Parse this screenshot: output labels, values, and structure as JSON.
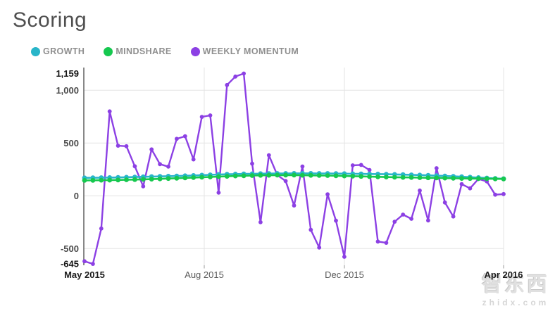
{
  "header": {
    "title": "Scoring"
  },
  "legend": {
    "items": [
      {
        "label": "GROWTH",
        "color": "#29b5c9"
      },
      {
        "label": "MINDSHARE",
        "color": "#16c84f"
      },
      {
        "label": "WEEKLY MOMENTUM",
        "color": "#8c40e4"
      }
    ]
  },
  "watermark": {
    "logo": "智东西",
    "domain": "zhidx.com"
  },
  "colors": {
    "growth": "#29b5c9",
    "mindshare": "#16c84f",
    "weekly_momentum": "#8c40e4",
    "axis_line": "#6b6b6b",
    "gridline": "#e4e4e4",
    "tick_label_regular": "#4a4a4a",
    "tick_label_extreme": "#141414",
    "x_label_regular": "#5a5a5a",
    "x_label_bold": "#1c1c1c"
  },
  "chart_data": {
    "type": "line",
    "title": "Scoring",
    "ylim": [
      -645,
      1159
    ],
    "grid": "on",
    "legend_position": "top-left",
    "x_range_labels": [
      "May 2015",
      "Apr 2016"
    ],
    "x_ticks": [
      {
        "label": "May 2015",
        "pos": 0.0,
        "bold": true
      },
      {
        "label": "Aug 2015",
        "pos": 0.2857,
        "bold": false
      },
      {
        "label": "Dec 2015",
        "pos": 0.6202,
        "bold": false
      },
      {
        "label": "Apr 2016",
        "pos": 1.0,
        "bold": true
      }
    ],
    "y_ticks": [
      {
        "label": "1,159",
        "value": 1159,
        "bold": true
      },
      {
        "label": "1,000",
        "value": 1000,
        "bold": false
      },
      {
        "label": "500",
        "value": 500,
        "bold": false
      },
      {
        "label": "0",
        "value": 0,
        "bold": false
      },
      {
        "label": "-500",
        "value": -500,
        "bold": false
      },
      {
        "label": "-645",
        "value": -645,
        "bold": true
      }
    ],
    "horizontal_gridline_values": [
      1000,
      500,
      0,
      -500
    ],
    "vertical_gridline_pos": [
      0.2857,
      0.6202,
      1.0
    ],
    "series": [
      {
        "name": "GROWTH",
        "color": "#29b5c9",
        "values": [
          170,
          171,
          172,
          173,
          174,
          176,
          178,
          180,
          182,
          184,
          186,
          188,
          190,
          193,
          196,
          199,
          202,
          204,
          206,
          208,
          209,
          210,
          211,
          212,
          212,
          213,
          213,
          213,
          212,
          212,
          211,
          210,
          209,
          208,
          207,
          206,
          205,
          203,
          201,
          199,
          197,
          194,
          191,
          188,
          185,
          181,
          177,
          173,
          169,
          165,
          162
        ]
      },
      {
        "name": "MINDSHARE",
        "color": "#16c84f",
        "values": [
          146,
          147,
          148,
          149,
          150,
          152,
          154,
          156,
          158,
          161,
          164,
          167,
          170,
          173,
          176,
          179,
          182,
          185,
          188,
          190,
          192,
          194,
          195,
          196,
          196,
          196,
          195,
          194,
          193,
          192,
          190,
          188,
          186,
          184,
          182,
          180,
          178,
          176,
          175,
          174,
          172,
          171,
          170,
          168,
          167,
          165,
          164,
          163,
          162,
          161,
          160
        ]
      },
      {
        "name": "WEEKLY MOMENTUM",
        "color": "#8c40e4",
        "values": [
          -620,
          -645,
          -310,
          800,
          475,
          470,
          280,
          90,
          440,
          300,
          277,
          540,
          565,
          345,
          748,
          762,
          30,
          1050,
          1130,
          1159,
          305,
          -250,
          385,
          197,
          140,
          -92,
          278,
          -322,
          -490,
          15,
          -235,
          -578,
          289,
          293,
          245,
          -433,
          -445,
          -245,
          -178,
          -218,
          50,
          -233,
          262,
          -63,
          -196,
          111,
          71,
          160,
          137,
          11,
          17
        ]
      }
    ]
  }
}
